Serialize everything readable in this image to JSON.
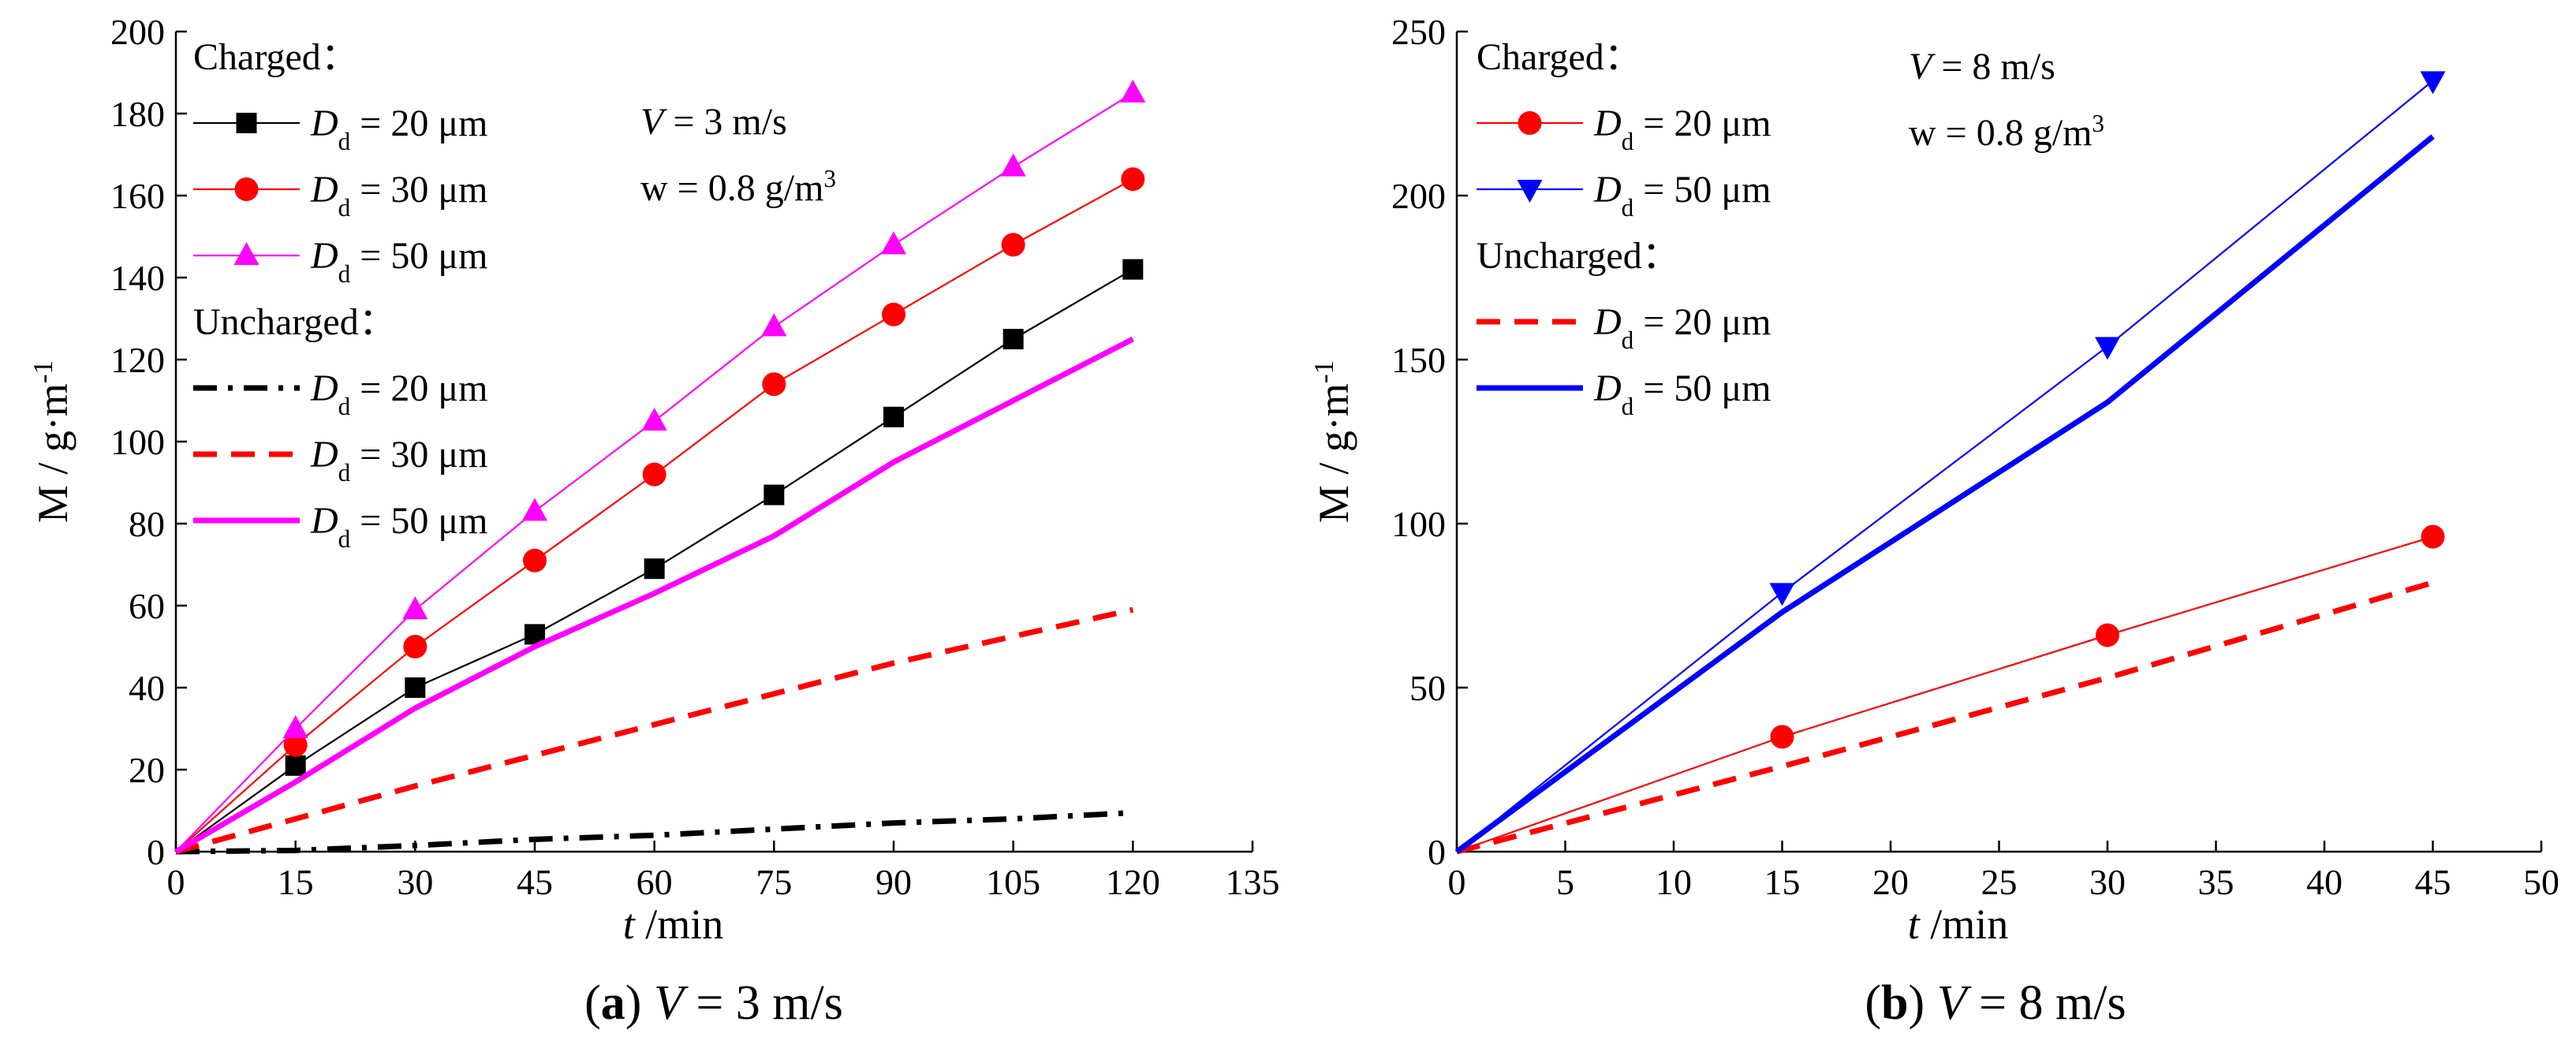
{
  "chart_data": [
    {
      "type": "line",
      "caption": {
        "letter": "a",
        "text": "V = 3 m/s"
      },
      "xlabel": "t /min",
      "ylabel": "M / g·m-1",
      "xlim": [
        0,
        135
      ],
      "ylim": [
        0,
        200
      ],
      "xticks": [
        0,
        15,
        30,
        45,
        60,
        75,
        90,
        105,
        120,
        135
      ],
      "yticks": [
        0,
        20,
        40,
        60,
        80,
        100,
        120,
        140,
        160,
        180,
        200
      ],
      "legend_position": "top-left",
      "annotations": [
        "V = 3 m/s",
        "w = 0.8 g/m3"
      ],
      "legend_groups": [
        {
          "title": "Charged：",
          "series_indices": [
            0,
            1,
            2
          ]
        },
        {
          "title": "Uncharged：",
          "series_indices": [
            3,
            4,
            5
          ]
        }
      ],
      "series": [
        {
          "name": "Dd = 20 μm",
          "group": "Charged",
          "color": "#000000",
          "style": "thin",
          "marker": "square",
          "x": [
            0,
            15,
            30,
            45,
            60,
            75,
            90,
            105,
            120
          ],
          "y": [
            0,
            21,
            40,
            53,
            69,
            87,
            106,
            125,
            142
          ]
        },
        {
          "name": "Dd = 30 μm",
          "group": "Charged",
          "color": "#ff0000",
          "style": "thin",
          "marker": "circle",
          "x": [
            0,
            15,
            30,
            45,
            60,
            75,
            90,
            105,
            120
          ],
          "y": [
            0,
            26,
            50,
            71,
            92,
            114,
            131,
            148,
            164
          ]
        },
        {
          "name": "Dd = 50 μm",
          "group": "Charged",
          "color": "#ff00ff",
          "style": "thin",
          "marker": "triangle-up",
          "x": [
            0,
            15,
            30,
            45,
            60,
            75,
            90,
            105,
            120
          ],
          "y": [
            0,
            30,
            59,
            83,
            105,
            128,
            148,
            167,
            185
          ]
        },
        {
          "name": "Dd = 20 μm",
          "group": "Uncharged",
          "color": "#000000",
          "style": "dashdot",
          "marker": "none",
          "x": [
            0,
            15,
            30,
            45,
            60,
            75,
            90,
            105,
            120
          ],
          "y": [
            0,
            0.3,
            1.5,
            3,
            4,
            5.5,
            7,
            8,
            9.5
          ]
        },
        {
          "name": "Dd = 30 μm",
          "group": "Uncharged",
          "color": "#ff0000",
          "style": "dashed",
          "marker": "none",
          "x": [
            0,
            30,
            60,
            90,
            120
          ],
          "y": [
            0,
            16,
            31,
            46,
            59
          ]
        },
        {
          "name": "Dd = 50 μm",
          "group": "Uncharged",
          "color": "#ff00ff",
          "style": "solid",
          "marker": "none",
          "x": [
            0,
            15,
            30,
            45,
            60,
            75,
            90,
            105,
            120
          ],
          "y": [
            0,
            17,
            35,
            50,
            63,
            77,
            95,
            110,
            125
          ]
        }
      ]
    },
    {
      "type": "line",
      "caption": {
        "letter": "b",
        "text": "V = 8 m/s"
      },
      "xlabel": "t /min",
      "ylabel": "M / g·m-1",
      "xlim": [
        0,
        50
      ],
      "ylim": [
        0,
        250
      ],
      "xticks": [
        0,
        5,
        10,
        15,
        20,
        25,
        30,
        35,
        40,
        45,
        50
      ],
      "yticks": [
        0,
        50,
        100,
        150,
        200,
        250
      ],
      "legend_position": "top-left",
      "annotations": [
        "V = 8 m/s",
        "w = 0.8 g/m3"
      ],
      "legend_groups": [
        {
          "title": "Charged：",
          "series_indices": [
            0,
            1
          ]
        },
        {
          "title": "Uncharged：",
          "series_indices": [
            2,
            3
          ]
        }
      ],
      "series": [
        {
          "name": "Dd = 20 μm",
          "group": "Charged",
          "color": "#ff0000",
          "style": "thin",
          "marker": "circle",
          "x": [
            0,
            15,
            30,
            45
          ],
          "y": [
            0,
            35,
            66,
            96
          ]
        },
        {
          "name": "Dd = 50 μm",
          "group": "Charged",
          "color": "#0000ff",
          "style": "thin",
          "marker": "triangle-down",
          "x": [
            0,
            15,
            30,
            45
          ],
          "y": [
            0,
            79,
            154,
            235
          ]
        },
        {
          "name": "Dd = 20 μm",
          "group": "Uncharged",
          "color": "#ff0000",
          "style": "dashed",
          "marker": "none",
          "x": [
            0,
            15,
            30,
            45
          ],
          "y": [
            0,
            26,
            53,
            82
          ]
        },
        {
          "name": "Dd = 50 μm",
          "group": "Uncharged",
          "color": "#0000ff",
          "style": "solid",
          "marker": "none",
          "x": [
            0,
            15,
            30,
            45
          ],
          "y": [
            0,
            73,
            137,
            218
          ]
        }
      ]
    }
  ]
}
